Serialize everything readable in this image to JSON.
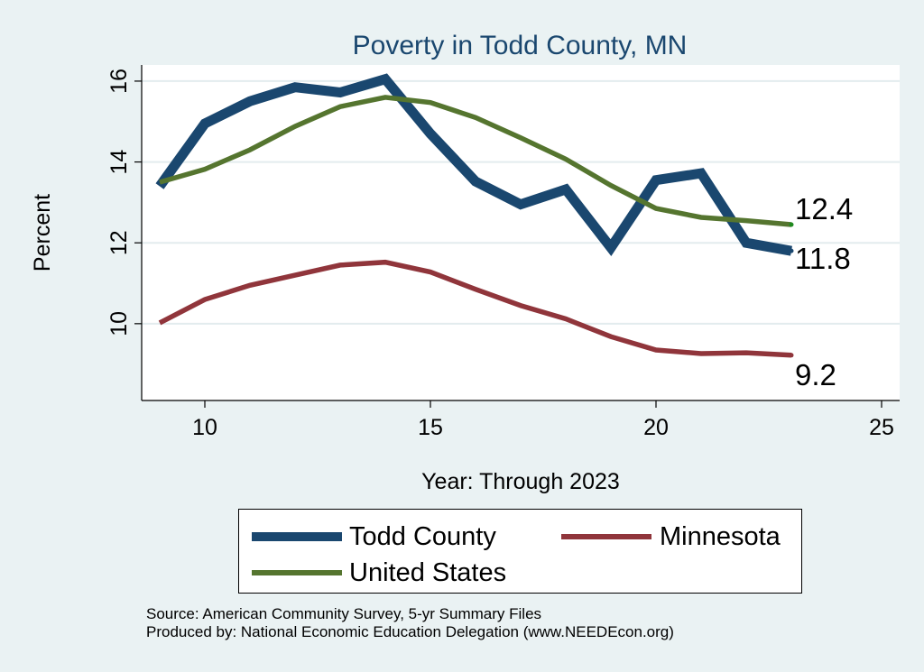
{
  "chart_data": {
    "type": "line",
    "title": "Poverty in Todd County, MN",
    "xlabel": "Year: Through 2023",
    "ylabel": "Percent",
    "xlim": [
      8.6,
      25.4
    ],
    "ylim": [
      8.1,
      16.4
    ],
    "xticks": [
      10,
      15,
      20,
      25
    ],
    "yticks": [
      10,
      12,
      14,
      16
    ],
    "grid": "horizontal",
    "x": [
      9,
      10,
      11,
      12,
      13,
      14,
      15,
      16,
      17,
      18,
      19,
      20,
      21,
      22,
      23
    ],
    "series": [
      {
        "name": "Todd County",
        "color": "#1a476f",
        "weight": "thick",
        "values": [
          13.4,
          14.95,
          15.5,
          15.85,
          15.72,
          16.05,
          14.7,
          13.52,
          12.95,
          13.32,
          11.88,
          13.55,
          13.72,
          12.0,
          11.8
        ],
        "end_label": "11.8"
      },
      {
        "name": "Minnesota",
        "color": "#90353b",
        "weight": "medium",
        "values": [
          10.02,
          10.6,
          10.95,
          11.2,
          11.45,
          11.52,
          11.28,
          10.85,
          10.45,
          10.12,
          9.68,
          9.35,
          9.26,
          9.28,
          9.22
        ],
        "end_label": "9.2"
      },
      {
        "name": "United States",
        "color": "#55752f",
        "weight": "medium",
        "values": [
          13.5,
          13.82,
          14.3,
          14.88,
          15.37,
          15.6,
          15.47,
          15.1,
          14.6,
          14.07,
          13.42,
          12.85,
          12.63,
          12.55,
          12.45
        ],
        "end_label": "12.4"
      }
    ],
    "legend": {
      "placement": "bottom",
      "items": [
        "Todd County",
        "Minnesota",
        "United States"
      ]
    }
  },
  "notes": {
    "source": "Source: American Community Survey, 5-yr Summary Files",
    "produced_by": "Produced by: National Economic Education Delegation (www.NEEDEcon.org)"
  }
}
